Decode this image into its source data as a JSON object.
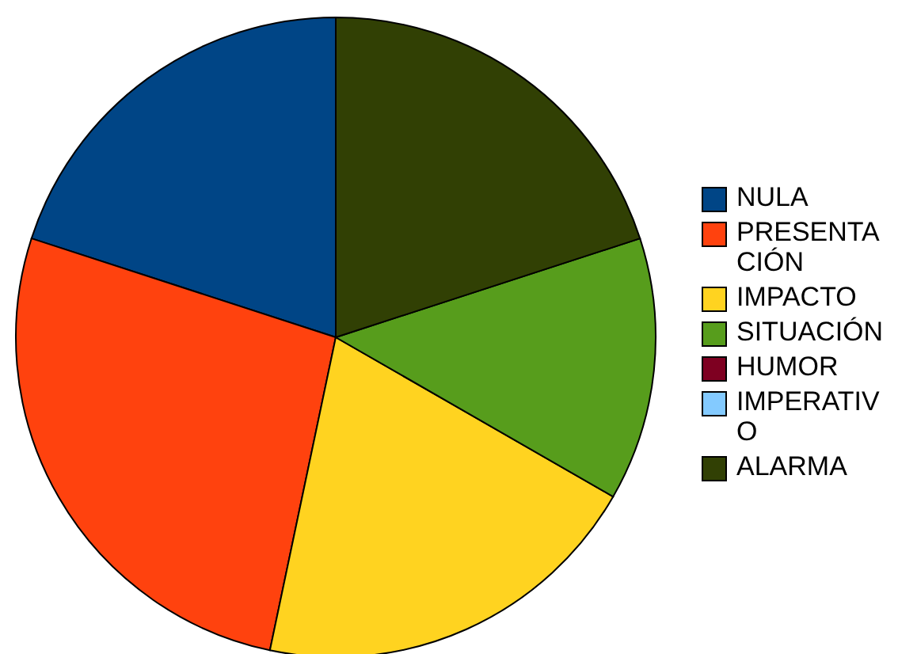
{
  "chart_data": {
    "type": "pie",
    "categories": [
      "NULA",
      "PRESENTACIÓN",
      "IMPACTO",
      "SITUACIÓN",
      "HUMOR",
      "IMPERATIVO",
      "ALARMA"
    ],
    "values": [
      20,
      26.7,
      20,
      13.3,
      0,
      0,
      20
    ],
    "colors": [
      "#004586",
      "#ff420e",
      "#ffd320",
      "#579d1c",
      "#7e0021",
      "#83caff",
      "#314004"
    ],
    "legend": "right"
  }
}
